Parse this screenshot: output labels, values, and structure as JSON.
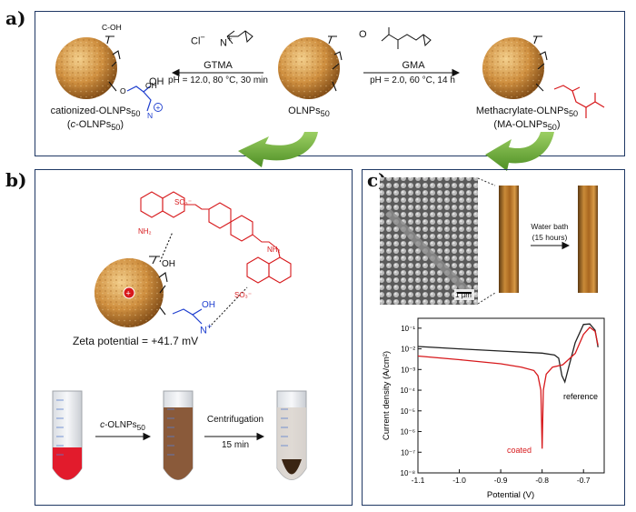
{
  "panels": {
    "a": {
      "label": "a)",
      "products": {
        "left_name": "cationized-OLNPs",
        "left_sub": "50",
        "left_abbr_pre": "(",
        "left_abbr_italic": "c",
        "left_abbr_mid": "-OLNPs",
        "left_abbr_sub": "50",
        "left_abbr_post": ")",
        "center_name": "OLNPs",
        "center_sub": "50",
        "right_name": "Methacrylate-OLNPs",
        "right_sub": "50",
        "right_abbr_pre": "(MA-OLNPs",
        "right_abbr_sub": "50",
        "right_abbr_post": ")"
      },
      "left_arrow": {
        "reagent": "GTMA",
        "conditions": "pH = 12.0, 80 °C, 30 min"
      },
      "right_arrow": {
        "reagent": "GMA",
        "conditions": "pH = 2.0, 60 °C, 14 h"
      },
      "chem": {
        "cl": "Cl",
        "minus": "−",
        "n": "N",
        "plus": "+",
        "oh": "OH",
        "o": "O"
      }
    },
    "b": {
      "label": "b)",
      "zeta": "Zeta potential = +41.7 mV",
      "chem": {
        "so3": "SO₃⁻",
        "nh2": "NH₂",
        "oh": "OH",
        "n": "N",
        "plus": "+",
        "minus": "−"
      },
      "step1_italic": "c",
      "step1_text": "-OLNPs",
      "step1_sub": "50",
      "step2_line1": "Centrifugation",
      "step2_line2": "15 min"
    },
    "c": {
      "label": "c)",
      "scale_bar": "1 µm",
      "water_bath_line1": "Water bath",
      "water_bath_line2": "(15 hours)",
      "colors": {
        "reference": "#222222",
        "coated": "#d7191c"
      }
    }
  },
  "chart_data": {
    "type": "line",
    "xlabel": "Potential (V)",
    "ylabel": "Current density (A/cm²)",
    "ylog": true,
    "xlim": [
      -1.1,
      -0.65
    ],
    "ylim": [
      1e-08,
      0.3
    ],
    "xticks": [
      "-1.1",
      "-1.0",
      "-0.9",
      "-0.8",
      "-0.7"
    ],
    "xtick_values": [
      -1.1,
      -1.0,
      -0.9,
      -0.8,
      -0.7
    ],
    "yticks": [
      "10⁻⁸",
      "10⁻⁷",
      "10⁻⁶",
      "10⁻⁵",
      "10⁻⁴",
      "10⁻³",
      "10⁻²",
      "10⁻¹"
    ],
    "ytick_values": [
      1e-08,
      1e-07,
      1e-06,
      1e-05,
      0.0001,
      0.001,
      0.01,
      0.1
    ],
    "series": [
      {
        "name": "reference",
        "x": [
          -1.1,
          -1.0,
          -0.9,
          -0.8,
          -0.77,
          -0.76,
          -0.752,
          -0.745,
          -0.735,
          -0.72,
          -0.7,
          -0.685,
          -0.672,
          -0.665
        ],
        "y": [
          0.013,
          0.01,
          0.0078,
          0.0062,
          0.005,
          0.0035,
          0.0005,
          0.00025,
          0.0015,
          0.02,
          0.15,
          0.16,
          0.08,
          0.012
        ]
      },
      {
        "name": "coated",
        "x": [
          -1.1,
          -1.0,
          -0.9,
          -0.85,
          -0.82,
          -0.81,
          -0.803,
          -0.8,
          -0.797,
          -0.79,
          -0.775,
          -0.75,
          -0.72,
          -0.7,
          -0.685,
          -0.672,
          -0.665
        ],
        "y": [
          0.0045,
          0.003,
          0.0019,
          0.0013,
          0.0009,
          0.0005,
          0.0001,
          1.5e-07,
          0.0001,
          0.0006,
          0.0013,
          0.0017,
          0.006,
          0.05,
          0.11,
          0.07,
          0.015
        ]
      }
    ]
  }
}
